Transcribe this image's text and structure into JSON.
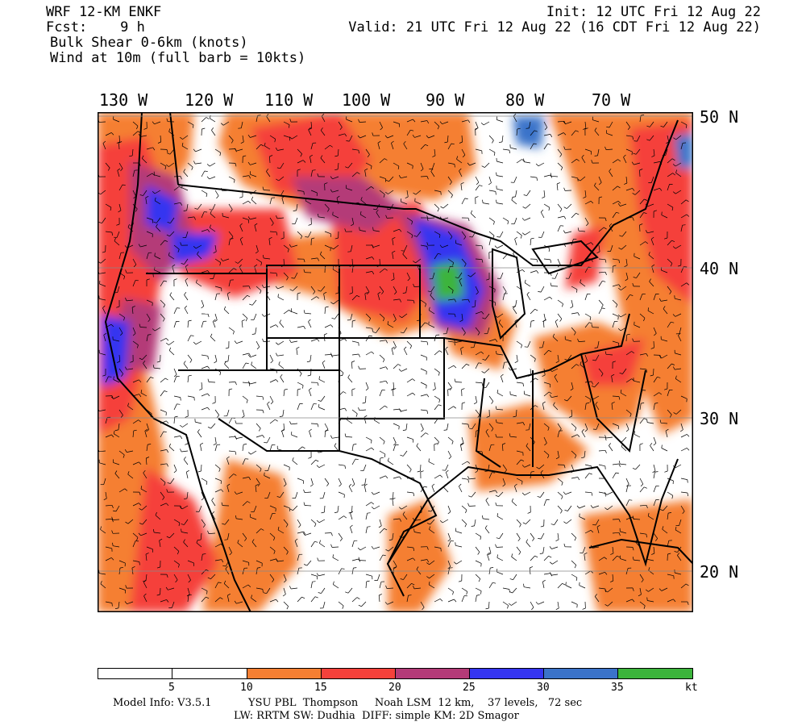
{
  "header": {
    "model": "WRF 12-KM ENKF",
    "fcst": "Fcst:    9 h",
    "field1": "Bulk Shear 0-6km (knots)",
    "field2": "Wind at 10m (full barb = 10kts)",
    "init": "Init: 12 UTC Fri 12 Aug 22",
    "valid": "Valid: 21 UTC Fri 12 Aug 22 (16 CDT Fri 12 Aug 22)"
  },
  "axes": {
    "longitudes": [
      "130 W",
      "120 W",
      "110 W",
      "100 W",
      "90 W",
      "80 W",
      "70 W"
    ],
    "latitudes": [
      "50 N",
      "40 N",
      "30 N",
      "20 N"
    ]
  },
  "colorbar": {
    "colors": [
      "#ffffff",
      "#ffffff",
      "#f57f33",
      "#f5413b",
      "#b43b78",
      "#3535f0",
      "#3b73c9",
      "#3cb43c"
    ],
    "ticks": [
      "5",
      "10",
      "15",
      "20",
      "25",
      "30",
      "35",
      "kt"
    ]
  },
  "footer": {
    "line1": "Model Info: V3.5.1           YSU PBL  Thompson     Noah LSM  12 km,    37 levels,   72 sec",
    "line2": "LW: RRTM SW: Dudhia  DIFF: simple KM: 2D Smagor"
  }
}
